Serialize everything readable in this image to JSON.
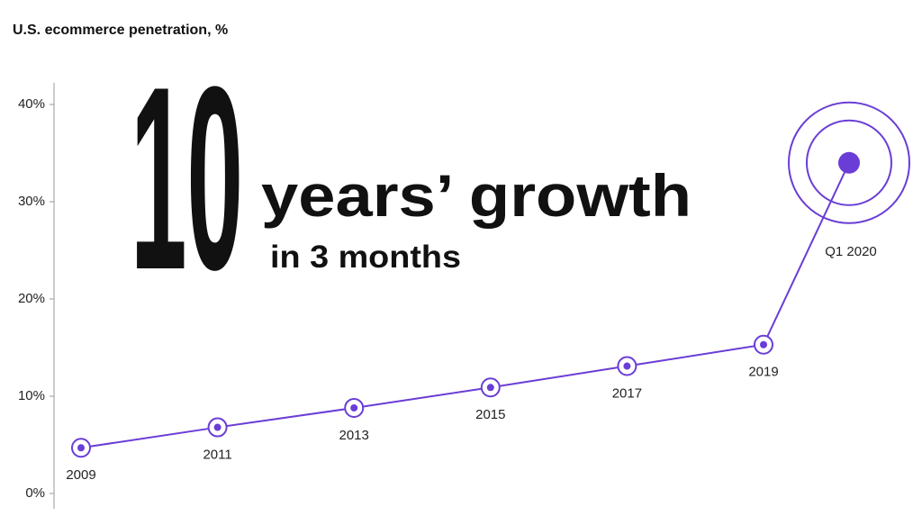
{
  "chart_data": {
    "type": "line",
    "title": "U.S. ecommerce penetration, %",
    "annotations": [
      "10",
      "years’ growth",
      "in 3 months"
    ],
    "categories": [
      "2009",
      "2011",
      "2013",
      "2015",
      "2017",
      "2019",
      "Q1 2020"
    ],
    "values": [
      4.7,
      6.8,
      8.8,
      10.9,
      13.1,
      15.3,
      34.0
    ],
    "color": "#6a3dd6",
    "ylim": [
      0,
      40
    ],
    "yticks": [
      {
        "value": 0,
        "label": "0%"
      },
      {
        "value": 10,
        "label": "10%"
      },
      {
        "value": 20,
        "label": "20%"
      },
      {
        "value": 30,
        "label": "30%"
      },
      {
        "value": 40,
        "label": "40%"
      }
    ]
  }
}
